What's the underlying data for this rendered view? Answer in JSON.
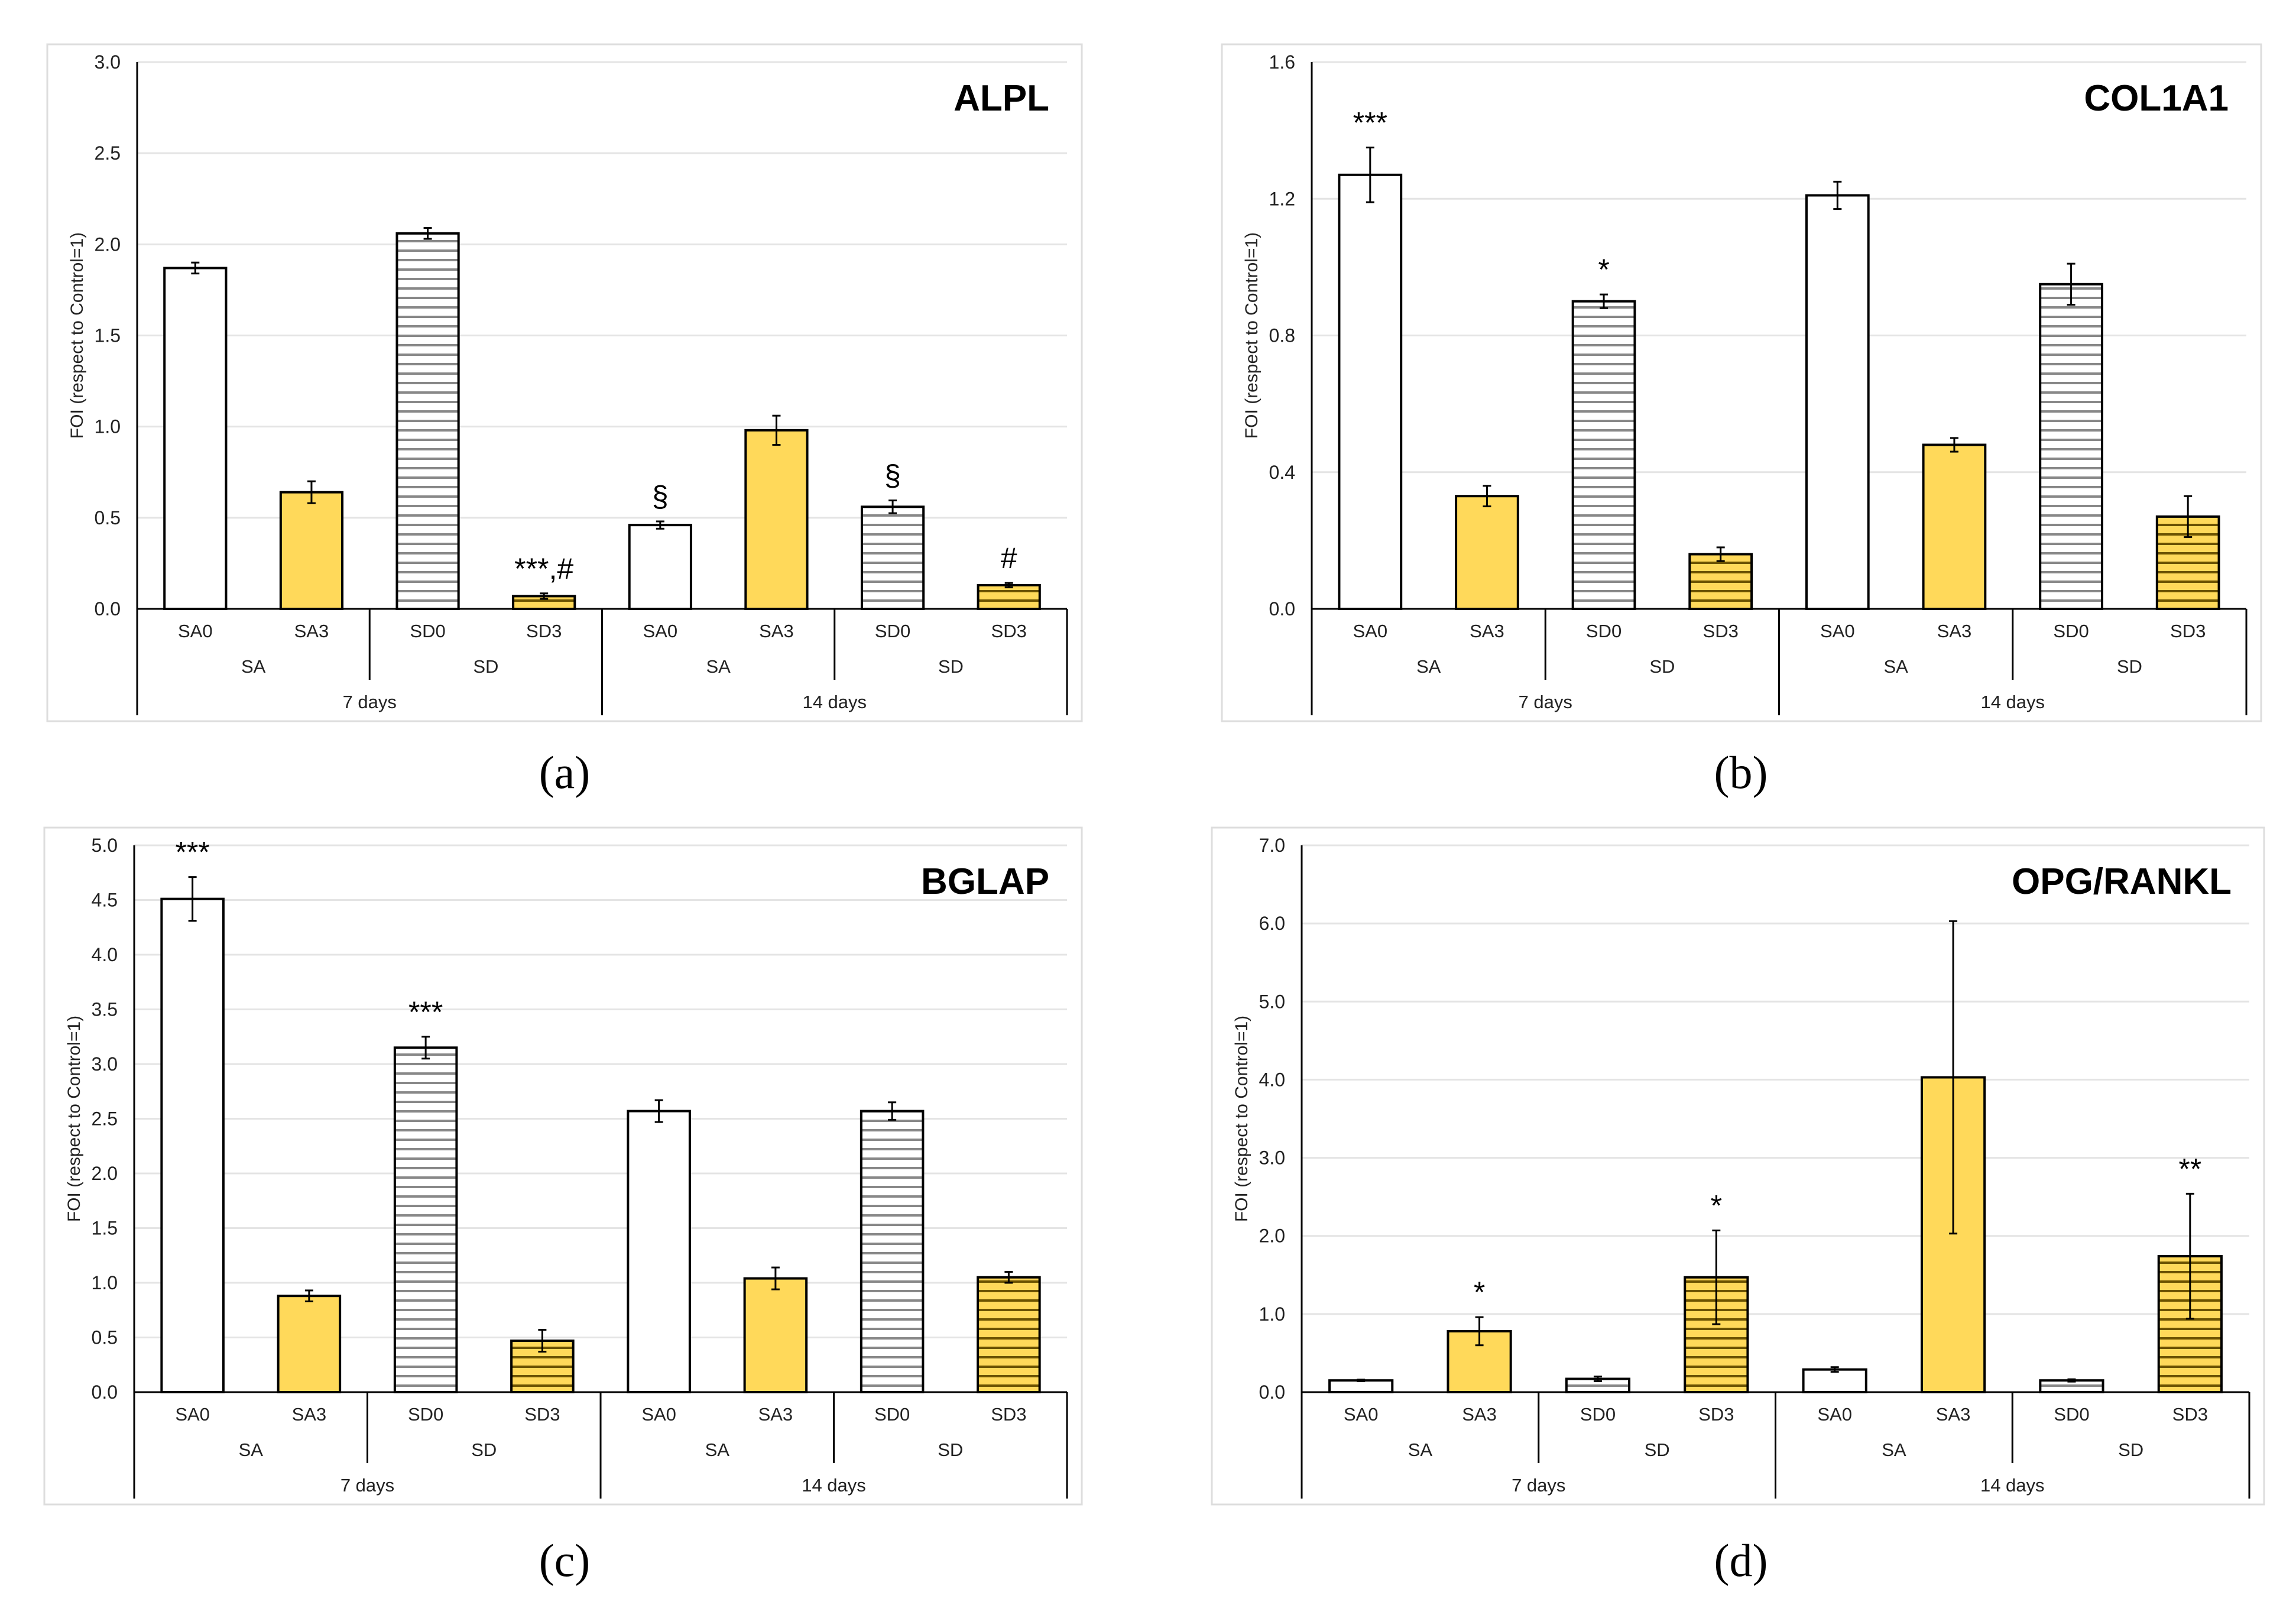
{
  "colors": {
    "yellow": "#FFD95A",
    "white": "#FFFFFF",
    "hatch_gray": "#888888",
    "hatch_dark": "#6b5200",
    "grid": "#E4E4E4"
  },
  "shared": {
    "ylabel": "FOI (respect to Control=1)",
    "categories": [
      "SA0",
      "SA3",
      "SD0",
      "SD3",
      "SA0",
      "SA3",
      "SD0",
      "SD3"
    ],
    "fills": [
      "white",
      "yellow",
      "white-hatch",
      "yellow-hatch",
      "white",
      "yellow",
      "white-hatch",
      "yellow-hatch"
    ],
    "groups": [
      "SA",
      "SD",
      "SA",
      "SD"
    ],
    "days": [
      "7 days",
      "14 days"
    ]
  },
  "chart_data": [
    {
      "type": "bar",
      "caption": "(a)",
      "title": "ALPL",
      "ylim": [
        0,
        3.0
      ],
      "ticks": [
        "0.0",
        "0.5",
        "1.0",
        "1.5",
        "2.0",
        "2.5",
        "3.0"
      ],
      "values": [
        1.87,
        0.64,
        2.06,
        0.07,
        0.46,
        0.98,
        0.56,
        0.13
      ],
      "errors": [
        0.03,
        0.06,
        0.03,
        0.015,
        0.02,
        0.08,
        0.035,
        0.012
      ],
      "annotations": [
        "",
        "",
        "",
        "***,#",
        "§",
        "",
        "§",
        "#"
      ]
    },
    {
      "type": "bar",
      "caption": "(b)",
      "title": "COL1A1",
      "ylim": [
        0,
        1.6
      ],
      "ticks": [
        "0.0",
        "0.4",
        "0.8",
        "1.2",
        "1.6"
      ],
      "values": [
        1.27,
        0.33,
        0.9,
        0.16,
        1.21,
        0.48,
        0.95,
        0.27
      ],
      "errors": [
        0.08,
        0.03,
        0.02,
        0.02,
        0.04,
        0.02,
        0.06,
        0.06
      ],
      "annotations": [
        "***",
        "",
        "*",
        "",
        "",
        "",
        "",
        ""
      ]
    },
    {
      "type": "bar",
      "caption": "(c)",
      "title": "BGLAP",
      "ylim": [
        0,
        5.0
      ],
      "ticks": [
        "0.0",
        "0.5",
        "1.0",
        "1.5",
        "2.0",
        "2.5",
        "3.0",
        "3.5",
        "4.0",
        "4.5",
        "5.0"
      ],
      "values": [
        4.51,
        0.88,
        3.15,
        0.47,
        2.57,
        1.04,
        2.57,
        1.05
      ],
      "errors": [
        0.2,
        0.05,
        0.1,
        0.1,
        0.1,
        0.1,
        0.08,
        0.05
      ],
      "annotations": [
        "***",
        "",
        "***",
        "",
        "",
        "",
        "",
        ""
      ]
    },
    {
      "type": "bar",
      "caption": "(d)",
      "title": "OPG/RANKL",
      "ylim": [
        0,
        7.0
      ],
      "ticks": [
        "0.0",
        "1.0",
        "2.0",
        "3.0",
        "4.0",
        "5.0",
        "6.0",
        "7.0"
      ],
      "values": [
        0.15,
        0.78,
        0.17,
        1.47,
        0.29,
        4.03,
        0.15,
        1.74
      ],
      "errors": [
        0.01,
        0.18,
        0.03,
        0.6,
        0.03,
        2.0,
        0.015,
        0.8
      ],
      "annotations": [
        "",
        "*",
        "",
        "*",
        "",
        "",
        "",
        "**"
      ]
    }
  ]
}
